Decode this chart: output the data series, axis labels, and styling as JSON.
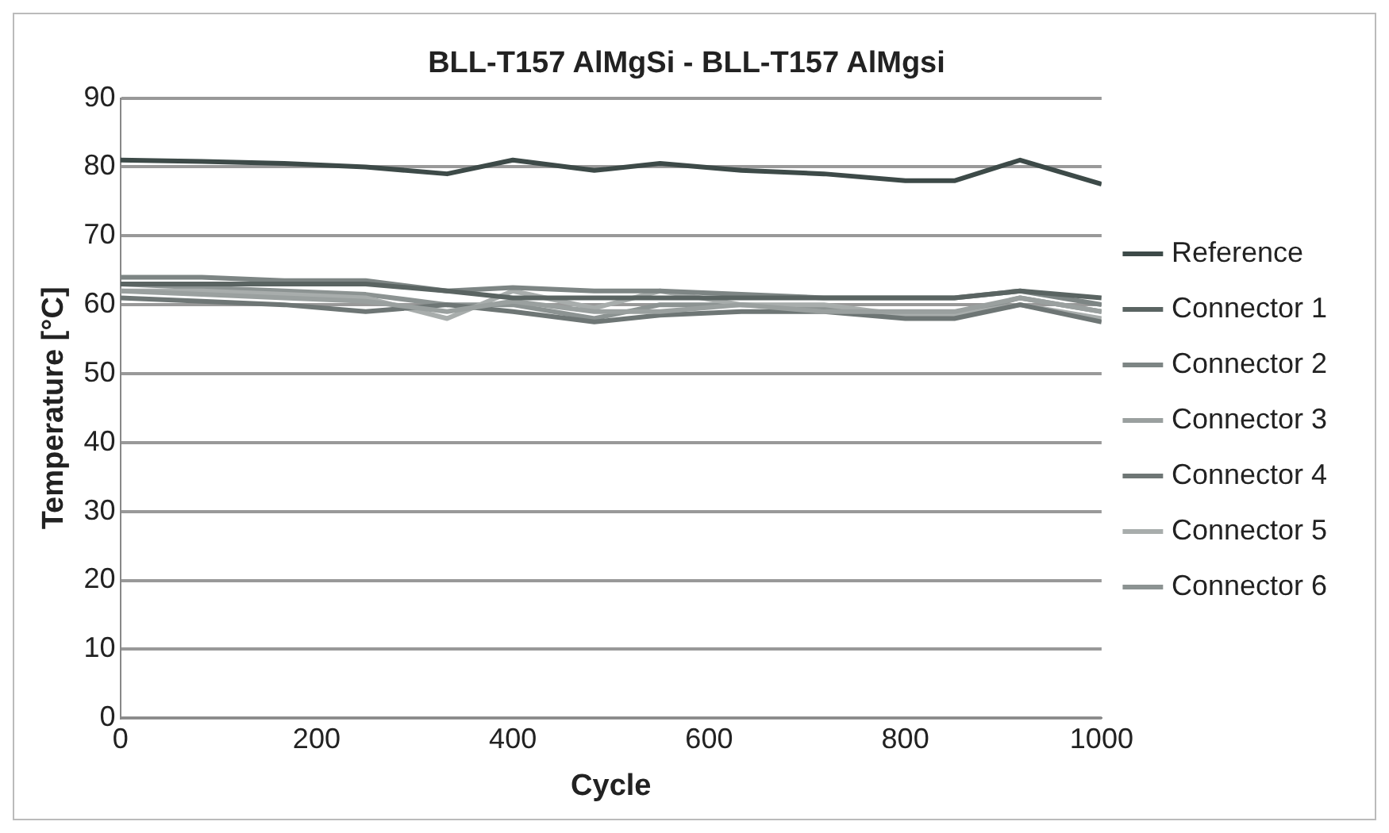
{
  "chart_data": {
    "type": "line",
    "title": "BLL-T157 AlMgSi - BLL-T157 AlMgsi",
    "xlabel": "Cycle",
    "ylabel": "Temperature [°C]",
    "x": [
      0,
      83,
      167,
      250,
      333,
      400,
      483,
      550,
      633,
      717,
      800,
      850,
      917,
      1000
    ],
    "xlim": [
      0,
      1000
    ],
    "xticks": [
      0,
      200,
      400,
      600,
      800,
      1000
    ],
    "ylim": [
      0,
      90
    ],
    "yticks": [
      0,
      10,
      20,
      30,
      40,
      50,
      60,
      70,
      80,
      90
    ],
    "grid": "y",
    "legend": "right",
    "marker": "none",
    "line_style": "solid",
    "series": [
      {
        "name": "Reference",
        "color": "#3d4a48",
        "values": [
          81,
          80.8,
          80.5,
          80,
          79,
          81,
          79.5,
          80.5,
          79.5,
          79,
          78,
          78,
          81,
          77.5
        ]
      },
      {
        "name": "Connector 1",
        "color": "#5a6462",
        "values": [
          63,
          63,
          63,
          63,
          62,
          61,
          61,
          61,
          61,
          61,
          61,
          61,
          62,
          61
        ]
      },
      {
        "name": "Connector 2",
        "color": "#7d8584",
        "values": [
          64,
          64,
          63.5,
          63.5,
          62,
          62.5,
          62,
          62,
          61.5,
          61,
          61,
          61,
          62,
          60
        ]
      },
      {
        "name": "Connector 3",
        "color": "#9aa09f",
        "values": [
          62,
          61.5,
          61,
          60.5,
          59,
          60.5,
          59,
          59,
          60,
          59,
          59,
          59,
          61,
          59
        ]
      },
      {
        "name": "Connector 4",
        "color": "#6e7675",
        "values": [
          61,
          60.5,
          60,
          59,
          60,
          59,
          57.5,
          58.5,
          59,
          59,
          58,
          58,
          60,
          57.5
        ]
      },
      {
        "name": "Connector 5",
        "color": "#a8adac",
        "values": [
          62,
          62,
          61.5,
          61,
          58,
          62,
          59.5,
          62,
          60,
          60,
          58.5,
          58.5,
          60,
          58
        ]
      },
      {
        "name": "Connector 6",
        "color": "#8c9392",
        "values": [
          63,
          62.5,
          62,
          61.5,
          60,
          60,
          58,
          60,
          60,
          59.5,
          58.5,
          58.5,
          61,
          59
        ]
      }
    ]
  }
}
